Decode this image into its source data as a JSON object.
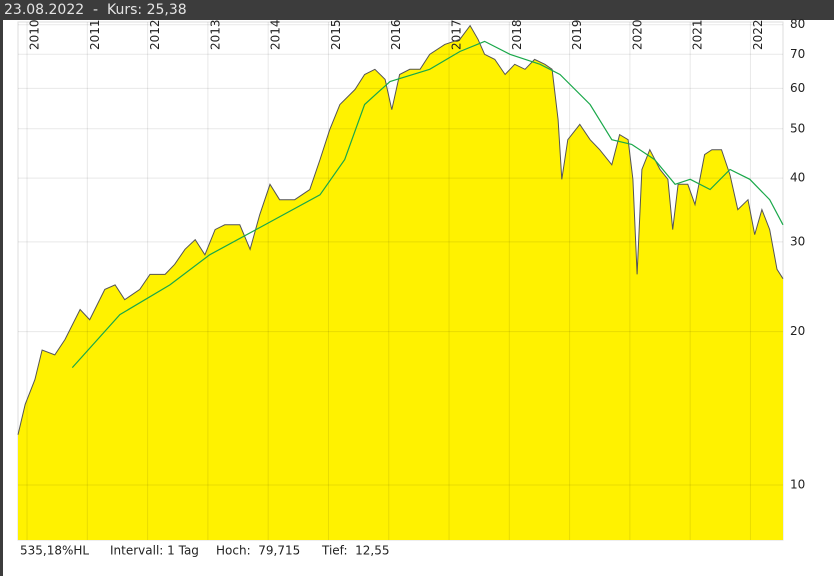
{
  "header": "23.08.2022  -  Kurs: 25,38",
  "footer": [
    "535,18%HL",
    "Intervall: 1 Tag",
    "Hoch:  79,715",
    "Tief:  12,55"
  ],
  "chart_data": {
    "type": "line",
    "log_scale": true,
    "grid": true,
    "fill": "#fff200",
    "xlim": [
      2009.85,
      2022.54
    ],
    "xticks": [
      2010,
      2011,
      2012,
      2013,
      2014,
      2015,
      2016,
      2017,
      2018,
      2019,
      2020,
      2021,
      2022
    ],
    "ylim": [
      7.8,
      81
    ],
    "yticks": [
      10,
      20,
      30,
      40,
      50,
      60,
      70,
      80
    ],
    "series": [
      {
        "color": "#555555",
        "x": [
          2009.85,
          2009.97,
          2010.13,
          2010.25,
          2010.46,
          2010.63,
          2010.88,
          2011.04,
          2011.29,
          2011.46,
          2011.62,
          2011.87,
          2012.04,
          2012.29,
          2012.45,
          2012.62,
          2012.79,
          2012.95,
          2013.12,
          2013.28,
          2013.53,
          2013.7,
          2013.86,
          2014.03,
          2014.19,
          2014.44,
          2014.69,
          2014.86,
          2015.02,
          2015.19,
          2015.44,
          2015.6,
          2015.77,
          2015.94,
          2016.05,
          2016.18,
          2016.35,
          2016.52,
          2016.68,
          2016.93,
          2017.18,
          2017.35,
          2017.48,
          2017.59,
          2017.76,
          2017.93,
          2018.09,
          2018.26,
          2018.42,
          2018.59,
          2018.71,
          2018.81,
          2018.87,
          2018.97,
          2019.17,
          2019.34,
          2019.5,
          2019.7,
          2019.83,
          2019.97,
          2020.05,
          2020.12,
          2020.2,
          2020.33,
          2020.5,
          2020.63,
          2020.71,
          2020.8,
          2020.96,
          2021.08,
          2021.24,
          2021.36,
          2021.52,
          2021.66,
          2021.79,
          2021.96,
          2022.07,
          2022.19,
          2022.32,
          2022.44,
          2022.54
        ],
        "values": [
          12.55,
          14.4,
          16.1,
          18.4,
          18.0,
          19.3,
          22.1,
          21.1,
          24.2,
          24.7,
          23.1,
          24.2,
          25.9,
          25.9,
          27.1,
          29.0,
          30.3,
          28.3,
          31.7,
          32.4,
          32.4,
          29.0,
          33.9,
          38.9,
          36.3,
          36.3,
          38.0,
          43.5,
          49.8,
          55.8,
          59.7,
          63.9,
          65.4,
          62.5,
          54.5,
          63.9,
          65.4,
          65.4,
          70.0,
          73.2,
          74.9,
          79.7,
          74.9,
          70.0,
          68.4,
          63.9,
          66.9,
          65.4,
          68.4,
          66.9,
          65.4,
          52.1,
          39.8,
          47.6,
          51.0,
          47.6,
          45.5,
          42.5,
          48.7,
          47.6,
          39.8,
          25.9,
          41.6,
          45.5,
          41.6,
          39.8,
          31.7,
          38.9,
          38.9,
          35.5,
          44.5,
          45.5,
          45.5,
          40.6,
          34.7,
          36.3,
          31.0,
          34.7,
          31.7,
          26.5,
          25.4
        ]
      },
      {
        "color": "#1aa84a",
        "x": [
          2010.75,
          2011.54,
          2012.37,
          2013.03,
          2013.86,
          2014.86,
          2015.27,
          2015.6,
          2016.02,
          2016.68,
          2017.18,
          2017.59,
          2018.01,
          2018.51,
          2018.84,
          2019.34,
          2019.7,
          2020.03,
          2020.41,
          2020.75,
          2021.0,
          2021.33,
          2021.66,
          2021.99,
          2022.32,
          2022.54
        ],
        "values": [
          17.0,
          21.6,
          24.7,
          28.3,
          32.0,
          37.1,
          43.5,
          55.8,
          61.9,
          65.4,
          70.9,
          74.2,
          70.0,
          66.9,
          63.9,
          55.8,
          47.6,
          46.6,
          43.5,
          38.9,
          39.8,
          38.0,
          41.6,
          39.8,
          36.3,
          32.4
        ]
      }
    ]
  }
}
